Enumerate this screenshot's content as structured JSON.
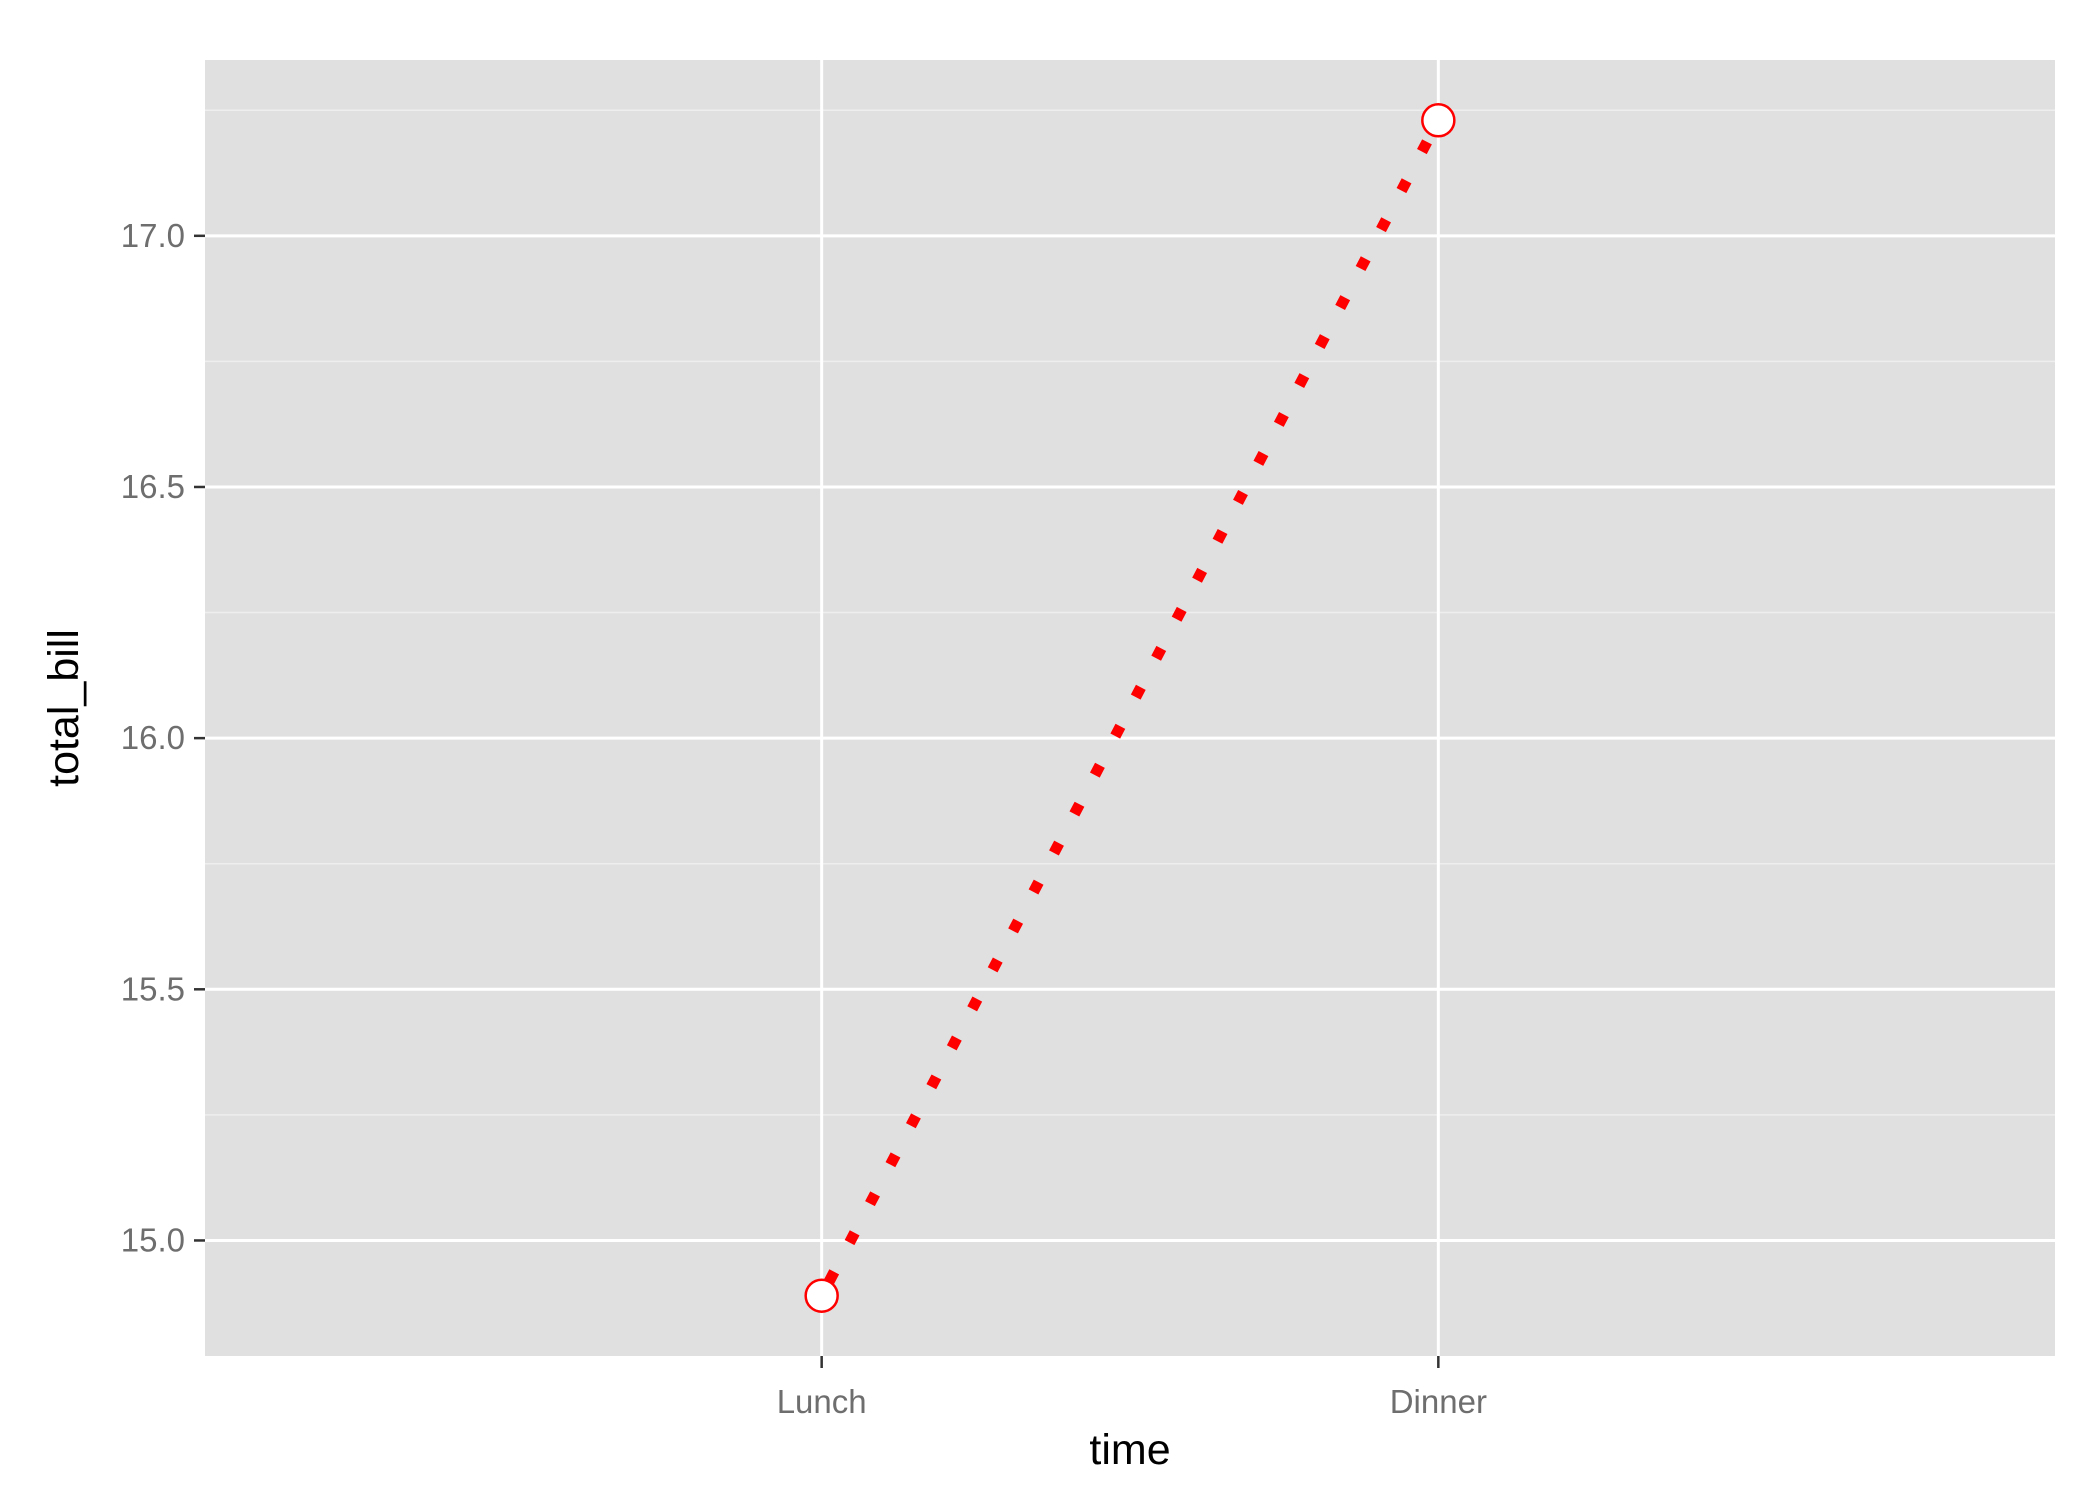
{
  "chart_data": {
    "type": "line",
    "title": "",
    "xlabel": "time",
    "ylabel": "total_bill",
    "categories": [
      "Lunch",
      "Dinner"
    ],
    "series": [
      {
        "values": [
          14.89,
          17.23
        ]
      }
    ],
    "ylim": [
      14.77,
      17.35
    ],
    "yticks": [
      15.0,
      15.5,
      16.0,
      16.5,
      17.0
    ],
    "ytick_labels": [
      "15.0",
      "15.5",
      "16.0",
      "16.5",
      "17.0"
    ],
    "grid": true,
    "legend": "none",
    "colors": {
      "panel_background": "#e0e0e0",
      "grid_major": "#ffffff",
      "grid_minor": "#eeeeee",
      "line": "#ff0000",
      "point_stroke": "#ff0000",
      "point_fill": "#ffffff"
    },
    "line_style": "dotted",
    "marker": "open-circle"
  }
}
